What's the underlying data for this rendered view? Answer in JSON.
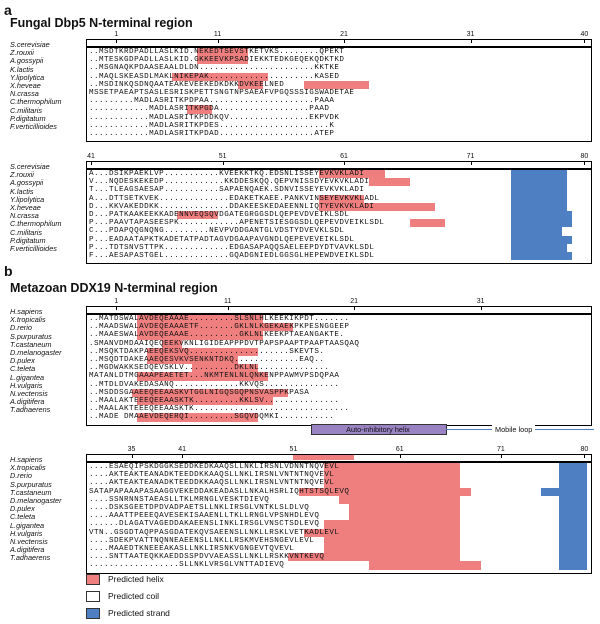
{
  "panel_a": {
    "letter": "a",
    "title": "Fungal Dbp5 N-terminal region",
    "species": [
      "S.cerevisiae",
      "Z.rouxii",
      "A.gossypii",
      "K.lactis",
      "Y.lipolytica",
      "X.heveae",
      "N.crassa",
      "C.thermophilum",
      "C.militaris",
      "P.digitatum",
      "F.verticillioides"
    ],
    "block1_ticks": [
      "1",
      "11",
      "21",
      "31",
      "40"
    ],
    "block2_ticks": [
      "41",
      "51",
      "61",
      "71",
      "80"
    ],
    "block1_seqs": [
      "..MSDTKRDPADLLASLKID.NEKEDTSEVSTKETVKS........QPEKT",
      "..MTESKGDPADLLASLKID.GKKEEVKPSADIEKKTEDKGEQEKQDKTKD",
      "..MSGNAQKPDAASEAALDLDN.......................KKTKE",
      "..MAQLSKEASDLMAKLNIKEPAK.....................KASED",
      "..MSDINKQSDNQAATEAKEVEEKEDKDKKDVKEELNED",
      "MSSETPAEAPTSASLESRISKPETTSNGTNPSAEAFVPGQSSSIGSWADETAE",
      ".........MADLASRITKPDPAA.....................PAAA",
      "............MADLASRITKPGDA..................PAAD",
      "............MADLASRITKPDDKQV................EKPVDK",
      "............MADLASRITKPDES......................K",
      "............MADLASRITKPDAD...................ATEP"
    ],
    "block2_seqs": [
      "A...DSIKPAEKLVP...........KVEEKKTKQ.EDSNLISSEYEVKVKLADI",
      "V...NQDESKEKEDP............KKDDESKQQ.QEPVNISSDYEVKVKLADI",
      "T...TLEAGSAESAP...........SAPAENQAEK.SDNVISSEYEVKVKLADI",
      "A...DTTSETKVEK..............EDAKETKAEE.PANKVINSEYEVKVKLADL",
      "D...KKVAKEDDKK..............DDAKEESKEDAEENNLIQTYEVKVKLADI",
      "D...PATKAAKEEKKADENNVEQSQVDGATEGRGGSDLQEPEVDVEIKLSDL",
      "P...PAAVTAPASEESPK............APENETSIESGGSDLQEPEVDVEIKLSDL",
      "C...PDAPQQGNQNG.........NEVPVDDGANTGLVDSTYDVEVKLSDL",
      "P...EADAATAPKTKADETATPADTAGVDGAAPAVGNDLQEPEVEVEIKLSDL",
      "P...TDTSNVSTTPK.............EDGASAPAQQSAELEEPDYDTVAVKLSDL",
      "F...AESAPASTGEL.............GQADGNIEDLGGSGLHEPEWDVEIKLSDL"
    ]
  },
  "panel_b": {
    "letter": "b",
    "title": "Metazoan DDX19 N-terminal region",
    "species": [
      "H.sapiens",
      "X.tropicalis",
      "D.rerio",
      "S.purpuratus",
      "T.castaneum",
      "D.melanogaster",
      "D.pulex",
      "C.teleta",
      "L.gigantea",
      "H.vulgaris",
      "N.vectensis",
      "A.digitifera",
      "T.adhaerens"
    ],
    "block1_ticks": [
      "1",
      "11",
      "21",
      "31"
    ],
    "block2_ticks": [
      "35",
      "41",
      "51",
      "61",
      "71",
      "80"
    ],
    "block1_seqs": [
      "..MATDSWALAVDEQEAAAE.........SLSNLHLKEEKIKPDT.......",
      "..MAADSWALAVDEQEAAAETF.......GKLNLKGEKAEKPKPESNGGEEP",
      "..MAAESWALAVDEQEAAAE..........GKLNLKEEKPTAEANGAKTE.",
      ".SMANVDMDAAIQEQEEKVKNLIGIDEAPPPDVTPAPSPAAPTPAAPTAASQAQ",
      "..MSQKTDAKPAEEQEKSVQ....................SKEVTS.",
      "..MSQDTDAKEAAEQESVKVSENKNTDKQ.............EAQ..",
      "..MGDWAKKSEDQEVSKLV..........DKLNL..............",
      "MATANLDTMGAAAPEAETET...NKMTENLNLQNKENPPAWMVPSDQPAA",
      "..MTDLDVAKEDASANQ.............KKVQS...............",
      "..MSDDSGAAEEQEEAASKVTGGLNIGQSGQPNSVASPPKPASA",
      "..MAALAKTEEEQEEAASKTK.........KKLSV...............",
      "..MAALAKTEEEQEEAASKTK...............................",
      "..MADE DMAAEVDEQERQI.........SGQVDQMKI..........."
    ],
    "block2_seqs": [
      "....ESAEQIPSKDGGKSEDDKEDKAAQSLLNKLIRSNLVDNNTNQVEVL",
      "....AKTEAKTEANADKTEEDDKKAAQSLLNKLIRSNLVNTNTNQVEVL",
      "....AKTEAKTEANADKTEEDDKKAAQSLLNKLIRSNLVNTNTNQVEVL",
      "SATAPAPAAAPASAAGGVEKEDDAKEADASLLNKALHSRLIQHTSTSQLEVQ",
      "....SSNRNNSTAEASLLTKLMRNGLVESKTDIEVQ",
      "....DSKSGEETDPDVADPAETSLLNKLIRSGLVNTKLSLDLVQ",
      "....AAATTPEEEQAVESEKISAAENLLTKLLRNGLVPSNHDLEVQ",
      "......DLAGATVAGEDDAKAEENSLINKLIRSGLVNSCTSDLEVQ",
      "VTN..GSGDTAQPPASGDATEKQVSAEENSLLNKLLRSKLVETKADLEVL",
      "....SDEKPVATTNQNNEAEENSLLNKLLRSKMVEHSNGEVLEVL",
      "....MAAEDTKNEEEAKASLLNKLIRSNKVGNGEVTQVEVL",
      "....SNTTAATEQKKAEDDSSPDVVAEASSLLNKLLRSKKVNTKEVQ",
      "..................SLLNKLVRSGLVNTTADIEVQ"
    ],
    "auto_inhibitory_label": "Auto-inhibitory helix",
    "mobile_loop_label": "Mobile loop"
  },
  "legend": {
    "items": [
      {
        "label": "Predicted helix",
        "color": "#ef7f7f"
      },
      {
        "label": "Predicted coil",
        "color": "#ffffff"
      },
      {
        "label": "Predicted strand",
        "color": "#4f7fc3"
      }
    ]
  },
  "colors": {
    "helix": "#ef7f7f",
    "strand": "#4f7fc3",
    "bar": "#9a83c3"
  }
}
